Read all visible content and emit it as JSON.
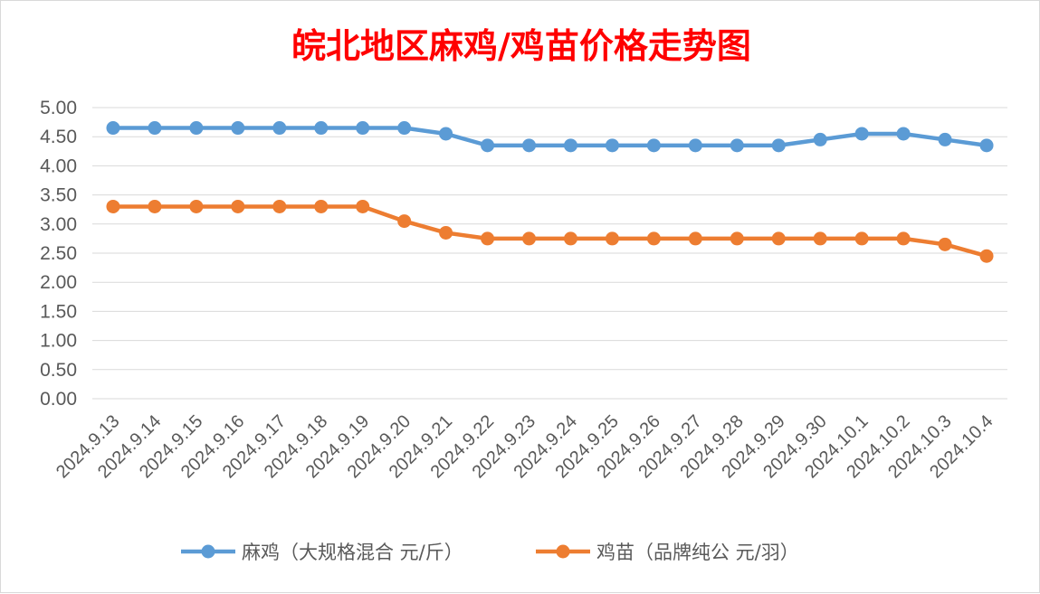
{
  "chart_data": {
    "type": "line",
    "title": "皖北地区麻鸡/鸡苗价格走势图",
    "title_color": "#ff0000",
    "categories": [
      "2024.9.13",
      "2024.9.14",
      "2024.9.15",
      "2024.9.16",
      "2024.9.17",
      "2024.9.18",
      "2024.9.19",
      "2024.9.20",
      "2024.9.21",
      "2024.9.22",
      "2024.9.23",
      "2024.9.24",
      "2024.9.25",
      "2024.9.26",
      "2024.9.27",
      "2024.9.28",
      "2024.9.29",
      "2024.9.30",
      "2024.10.1",
      "2024.10.2",
      "2024.10.3",
      "2024.10.4"
    ],
    "series": [
      {
        "name": "麻鸡（大规格混合 元/斤）",
        "color": "#5b9bd5",
        "values": [
          4.65,
          4.65,
          4.65,
          4.65,
          4.65,
          4.65,
          4.65,
          4.65,
          4.55,
          4.35,
          4.35,
          4.35,
          4.35,
          4.35,
          4.35,
          4.35,
          4.35,
          4.45,
          4.55,
          4.55,
          4.45,
          4.35
        ]
      },
      {
        "name": "鸡苗（品牌纯公 元/羽）",
        "color": "#ed7d31",
        "values": [
          3.3,
          3.3,
          3.3,
          3.3,
          3.3,
          3.3,
          3.3,
          3.05,
          2.85,
          2.75,
          2.75,
          2.75,
          2.75,
          2.75,
          2.75,
          2.75,
          2.75,
          2.75,
          2.75,
          2.75,
          2.65,
          2.45
        ]
      }
    ],
    "ylim": [
      0,
      5
    ],
    "y_ticks": [
      "0.00",
      "0.50",
      "1.00",
      "1.50",
      "2.00",
      "2.50",
      "3.00",
      "3.50",
      "4.00",
      "4.50",
      "5.00"
    ],
    "grid": true,
    "legend_position": "bottom",
    "xlabel": "",
    "ylabel": ""
  }
}
